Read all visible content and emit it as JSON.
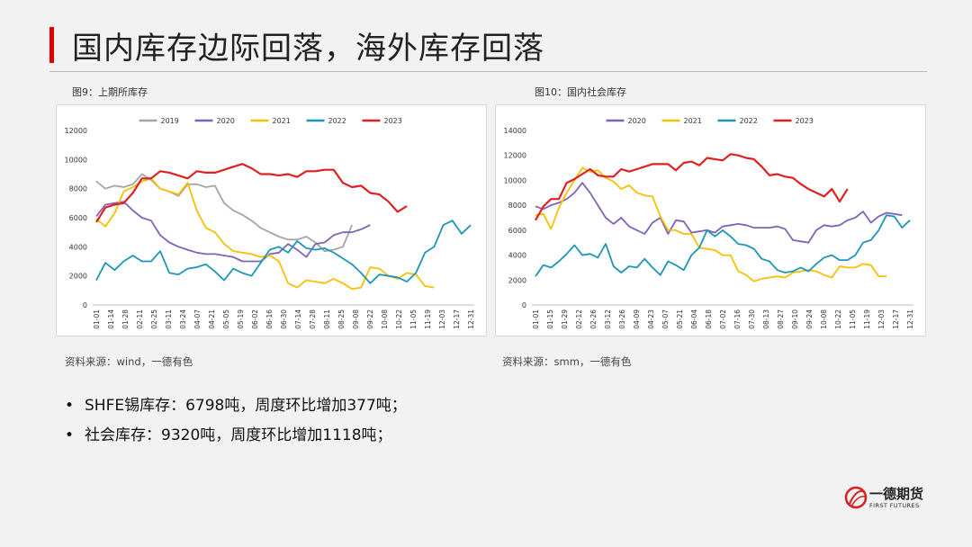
{
  "title": "国内库存边际回落，海外库存回落",
  "bullets": [
    "SHFE锡库存：6798吨，周度环比增加377吨；",
    "社会库存：9320吨，周度环比增加1118吨；"
  ],
  "bullet_symbol": "•",
  "logo": {
    "name": "一德期货",
    "english": "FIRST FUTURES"
  },
  "chart_data": [
    {
      "type": "line",
      "caption": "图9：上期所库存",
      "source": "资料来源：wind，一德有色",
      "xlabels": [
        "01-01",
        "01-14",
        "01-28",
        "02-11",
        "02-25",
        "03-11",
        "03-24",
        "04-07",
        "04-21",
        "05-05",
        "05-19",
        "06-02",
        "06-16",
        "06-30",
        "07-14",
        "07-28",
        "08-11",
        "08-25",
        "09-08",
        "09-22",
        "10-08",
        "10-22",
        "11-05",
        "11-19",
        "12-03",
        "12-17",
        "12-31"
      ],
      "ylim": [
        0,
        12000
      ],
      "yticks": [
        0,
        2000,
        4000,
        6000,
        8000,
        10000,
        12000
      ],
      "legend_position": "top",
      "series": [
        {
          "name": "2019",
          "color": "#a5a5a5",
          "values": [
            8500,
            8000,
            8200,
            8100,
            8300,
            9000,
            8600,
            8000,
            7800,
            7500,
            8300,
            8300,
            8100,
            8200,
            7000,
            6500,
            6200,
            5800,
            5300,
            5000,
            4700,
            4500,
            4500,
            4700,
            4300,
            3700,
            3800,
            4000,
            5500
          ]
        },
        {
          "name": "2020",
          "color": "#7f63b8",
          "values": [
            6100,
            6900,
            7000,
            7100,
            6500,
            6000,
            5800,
            4800,
            4300,
            4000,
            3800,
            3600,
            3500,
            3500,
            3400,
            3300,
            3000,
            3000,
            3000,
            3500,
            3600,
            4200,
            3800,
            3300,
            4200,
            4300,
            4800,
            5000,
            5000,
            5200,
            5500
          ]
        },
        {
          "name": "2021",
          "color": "#f5c002",
          "values": [
            5900,
            5400,
            6300,
            7800,
            8100,
            8500,
            8700,
            8000,
            7800,
            7600,
            8400,
            6500,
            5300,
            5000,
            4200,
            3700,
            3600,
            3500,
            3300,
            3400,
            3000,
            1500,
            1200,
            1700,
            1600,
            1500,
            1800,
            1500,
            1100,
            1200,
            2600,
            2500,
            2000,
            1800,
            2200,
            2100,
            1300,
            1200
          ]
        },
        {
          "name": "2022",
          "color": "#1c96b5",
          "values": [
            1700,
            2900,
            2400,
            3000,
            3400,
            3000,
            3000,
            3700,
            2200,
            2100,
            2500,
            2600,
            2800,
            2300,
            1700,
            2500,
            2200,
            2000,
            2900,
            3800,
            4000,
            3600,
            4400,
            3900,
            3800,
            3900,
            3600,
            3200,
            2800,
            2200,
            1500,
            2100,
            2000,
            1900,
            1600,
            2200,
            3600,
            4000,
            5500,
            5800,
            4900,
            5500
          ]
        },
        {
          "name": "2023",
          "color": "#e02020",
          "values": [
            5700,
            6700,
            6900,
            7000,
            7700,
            8700,
            8700,
            9200,
            9100,
            8900,
            8700,
            9200,
            9100,
            9100,
            9300,
            9500,
            9700,
            9400,
            9000,
            9000,
            8900,
            9000,
            8800,
            9200,
            9200,
            9300,
            9300,
            8400,
            8100,
            8200,
            7700,
            7600,
            7100,
            6400,
            6800
          ]
        }
      ]
    },
    {
      "type": "line",
      "caption": "图10：国内社会库存",
      "source": "资料来源：smm，一德有色",
      "xlabels": [
        "01-01",
        "01-15",
        "01-29",
        "02-12",
        "02-26",
        "03-12",
        "03-26",
        "04-09",
        "04-23",
        "05-07",
        "05-21",
        "06-04",
        "06-18",
        "07-02",
        "07-16",
        "07-30",
        "08-13",
        "08-27",
        "09-10",
        "09-24",
        "10-08",
        "10-22",
        "11-05",
        "11-19",
        "12-03",
        "12-17",
        "12-31"
      ],
      "ylim": [
        0,
        14000
      ],
      "yticks": [
        0,
        2000,
        4000,
        6000,
        8000,
        10000,
        12000,
        14000
      ],
      "legend_position": "top",
      "series": [
        {
          "name": "2020",
          "color": "#7f63b8",
          "values": [
            7900,
            7700,
            8000,
            8200,
            8500,
            9000,
            9800,
            9000,
            8000,
            7000,
            6500,
            7000,
            6300,
            6000,
            5700,
            6600,
            7000,
            5700,
            6800,
            6700,
            5800,
            5900,
            6000,
            5800,
            6300,
            6400,
            6500,
            6400,
            6200,
            6200,
            6200,
            6300,
            6100,
            5200,
            5100,
            5000,
            6000,
            6400,
            6300,
            6400,
            6800,
            7000,
            7500,
            6600,
            7100,
            7400,
            7300,
            7200
          ]
        },
        {
          "name": "2021",
          "color": "#f5c002",
          "values": [
            7200,
            7300,
            6100,
            7800,
            9000,
            10000,
            11000,
            10700,
            10800,
            10200,
            9900,
            9300,
            9600,
            9000,
            8800,
            8700,
            7100,
            6000,
            6000,
            5700,
            5700,
            4600,
            4500,
            4400,
            4000,
            4000,
            2700,
            2400,
            1900,
            2100,
            2200,
            2300,
            2200,
            2600,
            2700,
            2800,
            2700,
            2400,
            2200,
            3100,
            3000,
            3000,
            3300,
            3200,
            2300,
            2300
          ]
        },
        {
          "name": "2022",
          "color": "#1c96b5",
          "values": [
            2300,
            3200,
            3000,
            3500,
            4100,
            4800,
            4000,
            4100,
            3800,
            4900,
            3100,
            2600,
            3100,
            3000,
            3700,
            3000,
            2400,
            3500,
            3200,
            2800,
            4000,
            4600,
            6000,
            5500,
            6000,
            5500,
            4900,
            4800,
            4500,
            3700,
            3500,
            2800,
            2600,
            2700,
            3000,
            2700,
            3300,
            3800,
            4000,
            3600,
            3600,
            4000,
            5000,
            5200,
            6000,
            7200,
            7100,
            6200,
            6800
          ]
        },
        {
          "name": "2023",
          "color": "#e02020",
          "values": [
            6800,
            7900,
            8500,
            8500,
            9800,
            10100,
            10500,
            10900,
            10400,
            10300,
            10300,
            10900,
            10700,
            10900,
            11100,
            11300,
            11300,
            11300,
            10800,
            11400,
            11500,
            11200,
            11800,
            11700,
            11600,
            12100,
            12000,
            11800,
            11700,
            11100,
            10400,
            10500,
            10300,
            10200,
            9700,
            9300,
            9000,
            8700,
            9300,
            8300,
            9300
          ]
        }
      ]
    }
  ]
}
